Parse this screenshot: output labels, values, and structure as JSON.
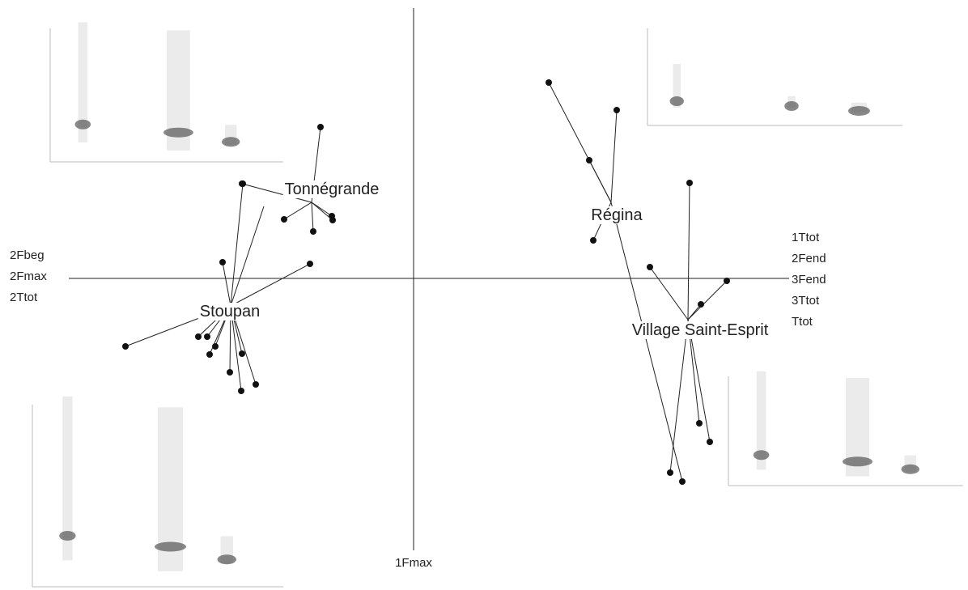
{
  "groups": [
    {
      "label": "Tonnégrande"
    },
    {
      "label": "Stoupan"
    },
    {
      "label": "Régina"
    },
    {
      "label": "Village Saint-Esprit"
    }
  ],
  "axis_labels": {
    "left": [
      "2Fbeg",
      "2Fmax",
      "2Ttot"
    ],
    "right": [
      "1Ttot",
      "2Fend",
      "3Fend",
      "3Ttot",
      "Ttot"
    ],
    "bottom": "1Fmax"
  }
}
